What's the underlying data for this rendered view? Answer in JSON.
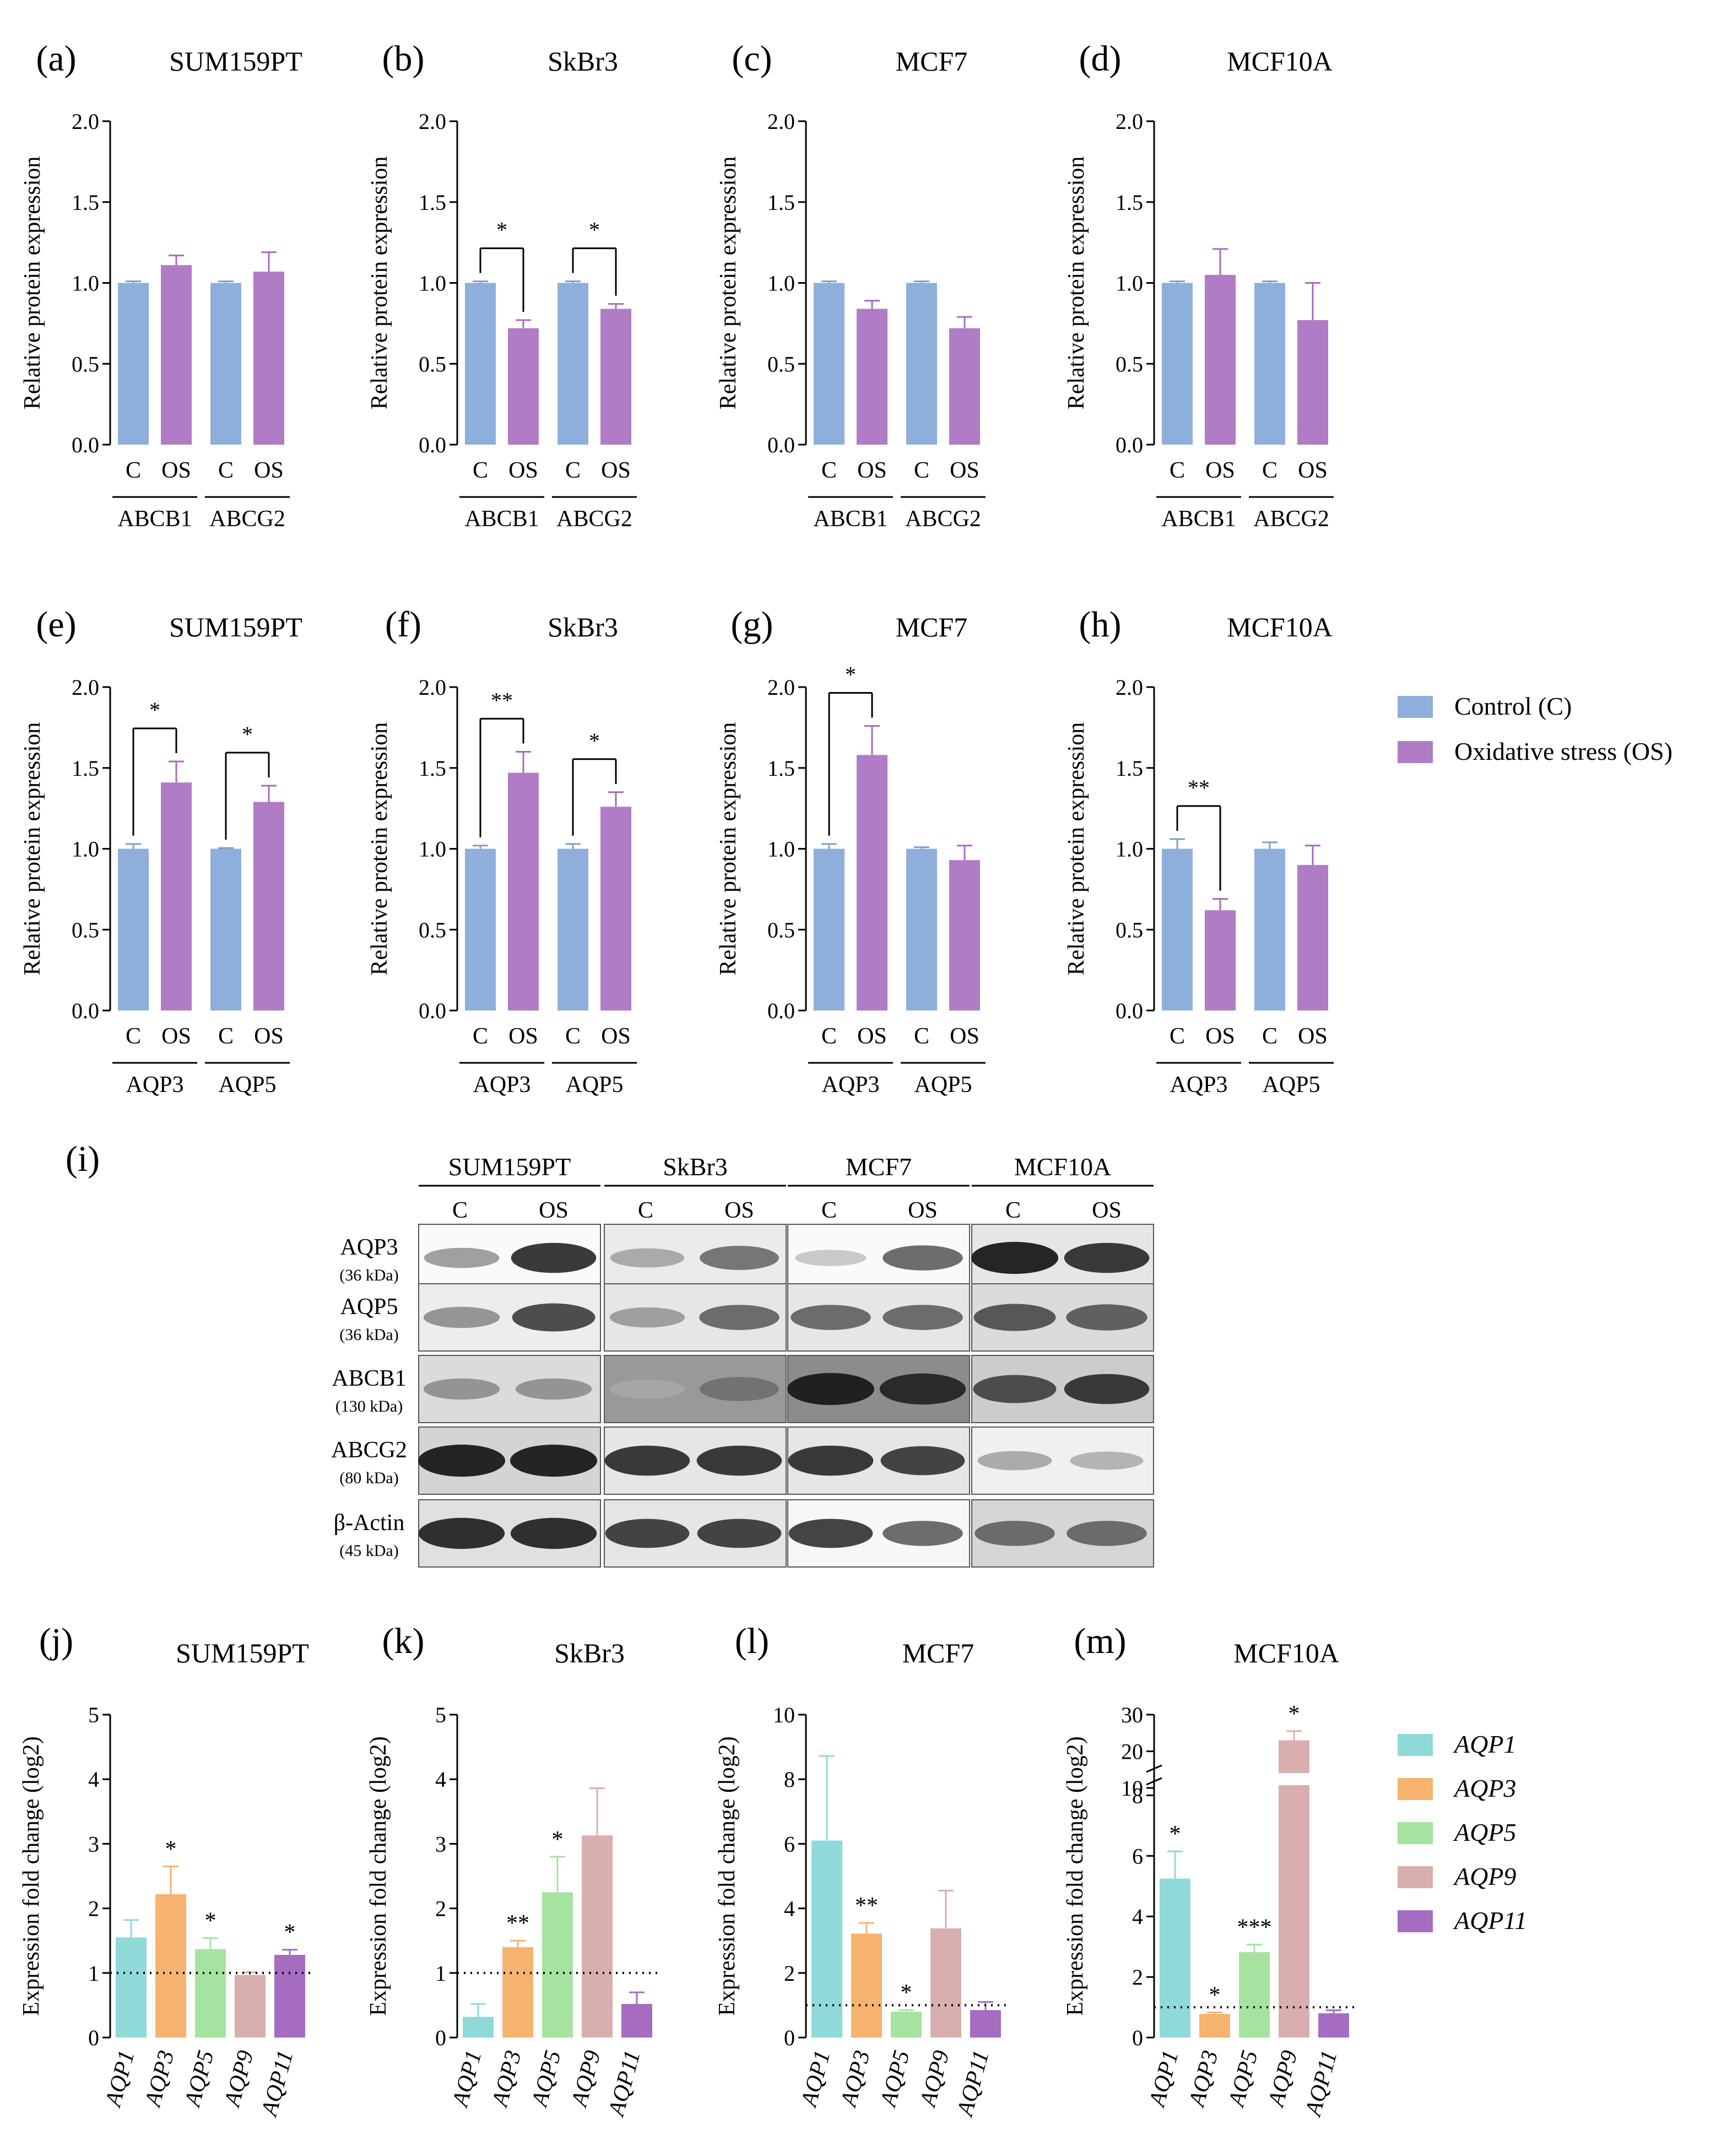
{
  "colors": {
    "control": "#8eaedb",
    "os": "#b07cc6",
    "os_err": "#a86ac0",
    "aqp1": "#8fd9d9",
    "aqp3": "#f5b36f",
    "aqp5": "#a6e3a1",
    "aqp9": "#d8aeae",
    "aqp11": "#a56cc1"
  },
  "legend_protein": [
    {
      "key": "control",
      "label": "Control (C)"
    },
    {
      "key": "os",
      "label": "Oxidative stress (OS)"
    }
  ],
  "legend_gene": [
    {
      "key": "aqp1",
      "label": "AQP1"
    },
    {
      "key": "aqp3",
      "label": "AQP3"
    },
    {
      "key": "aqp5",
      "label": "AQP5"
    },
    {
      "key": "aqp9",
      "label": "AQP9"
    },
    {
      "key": "aqp11",
      "label": "AQP11"
    }
  ],
  "protein_axis": {
    "ylabel": "Relative protein expression",
    "ticks": [
      "0.0",
      "0.5",
      "1.0",
      "1.5",
      "2.0"
    ],
    "ylim": [
      0,
      2.0
    ],
    "cond_labels": [
      "C",
      "OS",
      "C",
      "OS"
    ]
  },
  "gene_axis": {
    "ylabel": "Expression fold change (log2)"
  },
  "chart_data": [
    {
      "panel": "(a)",
      "type": "bar",
      "title": "SUM159PT",
      "groups": [
        "ABCB1",
        "ABCG2"
      ],
      "control": [
        1.0,
        1.0
      ],
      "control_err": [
        0.01,
        0.01
      ],
      "os": [
        1.11,
        1.07
      ],
      "os_err": [
        0.06,
        0.12
      ],
      "sig": []
    },
    {
      "panel": "(b)",
      "type": "bar",
      "title": "SkBr3",
      "groups": [
        "ABCB1",
        "ABCG2"
      ],
      "control": [
        1.0,
        1.0
      ],
      "control_err": [
        0.01,
        0.01
      ],
      "os": [
        0.72,
        0.84
      ],
      "os_err": [
        0.05,
        0.03
      ],
      "sig": [
        {
          "group": 0,
          "label": "*"
        },
        {
          "group": 1,
          "label": "*"
        }
      ]
    },
    {
      "panel": "(c)",
      "type": "bar",
      "title": "MCF7",
      "groups": [
        "ABCB1",
        "ABCG2"
      ],
      "control": [
        1.0,
        1.0
      ],
      "control_err": [
        0.01,
        0.01
      ],
      "os": [
        0.84,
        0.72
      ],
      "os_err": [
        0.05,
        0.07
      ],
      "sig": []
    },
    {
      "panel": "(d)",
      "type": "bar",
      "title": "MCF10A",
      "groups": [
        "ABCB1",
        "ABCG2"
      ],
      "control": [
        1.0,
        1.0
      ],
      "control_err": [
        0.01,
        0.01
      ],
      "os": [
        1.05,
        0.77
      ],
      "os_err": [
        0.16,
        0.23
      ],
      "sig": []
    },
    {
      "panel": "(e)",
      "type": "bar",
      "title": "SUM159PT",
      "groups": [
        "AQP3",
        "AQP5"
      ],
      "control": [
        1.0,
        1.0
      ],
      "control_err": [
        0.03,
        0.005
      ],
      "os": [
        1.41,
        1.29
      ],
      "os_err": [
        0.13,
        0.1
      ],
      "sig": [
        {
          "group": 0,
          "label": "*"
        },
        {
          "group": 1,
          "label": "*"
        }
      ]
    },
    {
      "panel": "(f)",
      "type": "bar",
      "title": "SkBr3",
      "groups": [
        "AQP3",
        "AQP5"
      ],
      "control": [
        1.0,
        1.0
      ],
      "control_err": [
        0.02,
        0.03
      ],
      "os": [
        1.47,
        1.26
      ],
      "os_err": [
        0.13,
        0.09
      ],
      "sig": [
        {
          "group": 0,
          "label": "**"
        },
        {
          "group": 1,
          "label": "*"
        }
      ]
    },
    {
      "panel": "(g)",
      "type": "bar",
      "title": "MCF7",
      "groups": [
        "AQP3",
        "AQP5"
      ],
      "control": [
        1.0,
        1.0
      ],
      "control_err": [
        0.03,
        0.01
      ],
      "os": [
        1.58,
        0.93
      ],
      "os_err": [
        0.18,
        0.09
      ],
      "sig": [
        {
          "group": 0,
          "label": "*"
        }
      ]
    },
    {
      "panel": "(h)",
      "type": "bar",
      "title": "MCF10A",
      "groups": [
        "AQP3",
        "AQP5"
      ],
      "control": [
        1.0,
        1.0
      ],
      "control_err": [
        0.06,
        0.04
      ],
      "os": [
        0.62,
        0.9
      ],
      "os_err": [
        0.07,
        0.12
      ],
      "sig": [
        {
          "group": 0,
          "label": "**",
          "inverted": true
        }
      ]
    },
    {
      "panel": "(j)",
      "type": "bar",
      "title": "SUM159PT",
      "categories": [
        "AQP1",
        "AQP3",
        "AQP5",
        "AQP9",
        "AQP11"
      ],
      "values": [
        1.55,
        2.22,
        1.37,
        0.97,
        1.28
      ],
      "errors": [
        0.27,
        0.43,
        0.17,
        0.04,
        0.08
      ],
      "sig": [
        "",
        "*",
        "*",
        "",
        "*"
      ],
      "ylim": [
        0,
        5
      ],
      "ticks": [
        "0",
        "1",
        "2",
        "3",
        "4",
        "5"
      ],
      "reference_line": 1
    },
    {
      "panel": "(k)",
      "type": "bar",
      "title": "SkBr3",
      "categories": [
        "AQP1",
        "AQP3",
        "AQP5",
        "AQP9",
        "AQP11"
      ],
      "values": [
        0.32,
        1.4,
        2.25,
        3.13,
        0.52
      ],
      "errors": [
        0.2,
        0.1,
        0.55,
        0.73,
        0.18
      ],
      "sig": [
        "",
        "**",
        "*",
        "",
        ""
      ],
      "ylim": [
        0,
        5
      ],
      "ticks": [
        "0",
        "1",
        "2",
        "3",
        "4",
        "5"
      ],
      "reference_line": 1
    },
    {
      "panel": "(l)",
      "type": "bar",
      "title": "MCF7",
      "categories": [
        "AQP1",
        "AQP3",
        "AQP5",
        "AQP9",
        "AQP11"
      ],
      "values": [
        6.1,
        3.22,
        0.8,
        3.38,
        0.85
      ],
      "errors": [
        2.62,
        0.33,
        0.05,
        1.17,
        0.25
      ],
      "sig": [
        "",
        "**",
        "*",
        "",
        ""
      ],
      "ylim": [
        0,
        10
      ],
      "ticks": [
        "0",
        "2",
        "4",
        "6",
        "8",
        "10"
      ],
      "reference_line": 1
    },
    {
      "panel": "(m)",
      "type": "bar",
      "title": "MCF10A",
      "categories": [
        "AQP1",
        "AQP3",
        "AQP5",
        "AQP9",
        "AQP11"
      ],
      "values": [
        5.25,
        0.78,
        2.82,
        23.0,
        0.8
      ],
      "errors": [
        0.9,
        0.05,
        0.25,
        2.5,
        0.1
      ],
      "sig": [
        "*",
        "*",
        "***",
        "*",
        ""
      ],
      "broken_axis": true,
      "lower_ticks": [
        "0",
        "2",
        "4",
        "6",
        "8"
      ],
      "upper_ticks": [
        "10",
        "20",
        "30"
      ],
      "reference_line": 1
    }
  ],
  "blot": {
    "panel": "(i)",
    "cell_lines": [
      "SUM159PT",
      "SkBr3",
      "MCF7",
      "MCF10A"
    ],
    "conditions": [
      "C",
      "OS"
    ],
    "rows": [
      {
        "protein": "AQP3",
        "kda": "(36 kDa)",
        "bg": [
          0.98,
          0.92,
          0.98,
          0.9
        ],
        "band": [
          [
            0.35,
            0.85
          ],
          [
            0.3,
            0.55
          ],
          [
            0.15,
            0.6
          ],
          [
            0.95,
            0.85
          ]
        ]
      },
      {
        "protein": "AQP5",
        "kda": "(36 kDa)",
        "bg": [
          0.93,
          0.9,
          0.9,
          0.86
        ],
        "band": [
          [
            0.4,
            0.75
          ],
          [
            0.35,
            0.6
          ],
          [
            0.6,
            0.6
          ],
          [
            0.7,
            0.65
          ]
        ]
      },
      {
        "protein": "ABCB1",
        "kda": "(130 kDa)",
        "bg": [
          0.86,
          0.6,
          0.55,
          0.8
        ],
        "band": [
          [
            0.4,
            0.4
          ],
          [
            0.3,
            0.55
          ],
          [
            0.95,
            0.9
          ],
          [
            0.75,
            0.85
          ]
        ]
      },
      {
        "protein": "ABCG2",
        "kda": "(80 kDa)",
        "bg": [
          0.83,
          0.9,
          0.9,
          0.94
        ],
        "band": [
          [
            0.95,
            0.95
          ],
          [
            0.85,
            0.85
          ],
          [
            0.85,
            0.8
          ],
          [
            0.3,
            0.25
          ]
        ]
      },
      {
        "protein": "β-Actin",
        "kda": "(45 kDa)",
        "bg": [
          0.88,
          0.9,
          0.97,
          0.84
        ],
        "band": [
          [
            0.9,
            0.9
          ],
          [
            0.8,
            0.8
          ],
          [
            0.8,
            0.6
          ],
          [
            0.6,
            0.6
          ]
        ]
      }
    ]
  }
}
